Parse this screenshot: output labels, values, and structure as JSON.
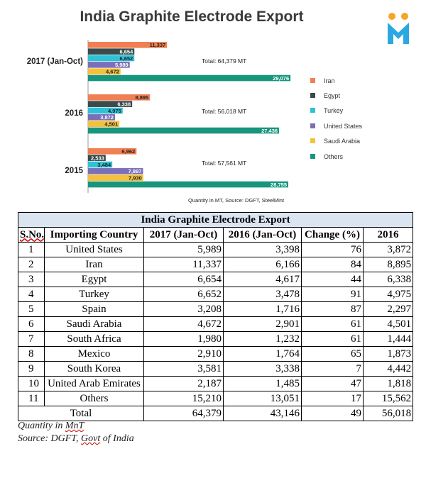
{
  "chart_data": {
    "type": "bar",
    "orientation": "horizontal",
    "title": "India Graphite Electrode Export",
    "groups": [
      "2017 (Jan-Oct)",
      "2016",
      "2015"
    ],
    "series": [
      {
        "name": "Iran",
        "color": "#f07f54",
        "values": [
          11337,
          8895,
          6962
        ],
        "labels": [
          "11,337",
          "8,895",
          "6,962"
        ]
      },
      {
        "name": "Egypt",
        "color": "#3b4a4b",
        "values": [
          6654,
          6338,
          2533
        ],
        "labels": [
          "6,654",
          "6,338",
          "2,533"
        ]
      },
      {
        "name": "Turkey",
        "color": "#2ec2d6",
        "values": [
          6652,
          4975,
          3484
        ],
        "labels": [
          "6,652",
          "4,975",
          "3,484"
        ]
      },
      {
        "name": "United States",
        "color": "#7b6fb9",
        "values": [
          5989,
          3872,
          7897
        ],
        "labels": [
          "5,989",
          "3,872",
          "7,897"
        ]
      },
      {
        "name": "Saudi Arabia",
        "color": "#f6c13a",
        "values": [
          4672,
          4501,
          7930
        ],
        "labels": [
          "4,672",
          "4,501",
          "7,930"
        ]
      },
      {
        "name": "Others",
        "color": "#17967d",
        "values": [
          29076,
          27436,
          28755
        ],
        "labels": [
          "29,076",
          "27,436",
          "28,755"
        ]
      }
    ],
    "totals": [
      "Total: 64,379 MT",
      "Total: 56,018 MT",
      "Total: 57,561 MT"
    ],
    "legend_position": "right",
    "grid": false,
    "source_note": "Quantity in MT, Source: DGFT, SteelMint"
  },
  "table": {
    "title": "India Graphite Electrode Export",
    "headers": [
      "S.No.",
      "Importing Country",
      "2017 (Jan-Oct)",
      "2016 (Jan-Oct)",
      "Change (%)",
      "2016"
    ],
    "rows": [
      [
        "1",
        "United States",
        "5,989",
        "3,398",
        "76",
        "3,872"
      ],
      [
        "2",
        "Iran",
        "11,337",
        "6,166",
        "84",
        "8,895"
      ],
      [
        "3",
        "Egypt",
        "6,654",
        "4,617",
        "44",
        "6,338"
      ],
      [
        "4",
        "Turkey",
        "6,652",
        "3,478",
        "91",
        "4,975"
      ],
      [
        "5",
        "Spain",
        "3,208",
        "1,716",
        "87",
        "2,297"
      ],
      [
        "6",
        "Saudi Arabia",
        "4,672",
        "2,901",
        "61",
        "4,501"
      ],
      [
        "7",
        "South Africa",
        "1,980",
        "1,232",
        "61",
        "1,444"
      ],
      [
        "8",
        "Mexico",
        "2,910",
        "1,764",
        "65",
        "1,873"
      ],
      [
        "9",
        "South Korea",
        "3,581",
        "3,338",
        "7",
        "4,442"
      ],
      [
        "10",
        "United Arab Emirates",
        "2,187",
        "1,485",
        "47",
        "1,818"
      ],
      [
        "11",
        "Others",
        "15,210",
        "13,051",
        "17",
        "15,562"
      ]
    ],
    "total": {
      "label": "Total",
      "values": [
        "64,379",
        "43,146",
        "49",
        "56,018"
      ]
    }
  },
  "notes": {
    "quantity_prefix": "Quantity in",
    "quantity_unit": "MnT",
    "source_prefix": "Source: DGFT,",
    "source_govt": "Govt",
    "source_suffix": "of India"
  },
  "logo": {
    "icon": "person-m-logo-icon",
    "color_body": "#2ba8e0",
    "color_heads": "#f6a623"
  }
}
